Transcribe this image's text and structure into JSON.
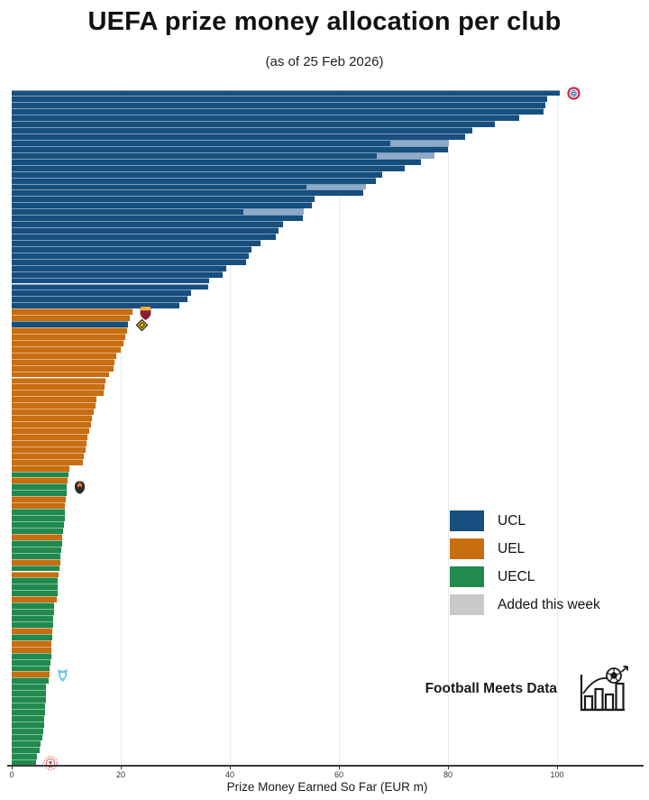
{
  "header": {
    "title": "UEFA prize money allocation per club",
    "subtitle": "(as of 25 Feb 2026)"
  },
  "legend": {
    "items": [
      {
        "label": "UCL",
        "color": "#174F7E"
      },
      {
        "label": "UEL",
        "color": "#C76E11"
      },
      {
        "label": "UECL",
        "color": "#218A4E"
      },
      {
        "label": "Added this week",
        "color": "#C9C9C9"
      }
    ]
  },
  "watermark": {
    "text": "Football Meets Data"
  },
  "chart_data": {
    "type": "bar",
    "orientation": "horizontal",
    "title": "UEFA prize money allocation per club",
    "subtitle": "(as of 25 Feb 2026)",
    "xlabel": "Prize Money Earned So Far (EUR m)",
    "ylabel": "",
    "x_ticks": [
      0,
      20,
      40,
      60,
      80,
      100
    ],
    "xlim": [
      0,
      115
    ],
    "grid": "vertical-light",
    "legend_position": "right-middle",
    "colors": {
      "UCL": "#174F7E",
      "UEL": "#C76E11",
      "UECL": "#218A4E",
      "added_legend": "#C9C9C9",
      "added_over_bar": "#8FA9C9"
    },
    "note": "108 clubs sorted by prize money; 'added' = amount added this week shown as light segment at bar end; crests mark selected clubs",
    "bars": [
      {
        "league": "UCL",
        "value": 100.5,
        "crest": "bayern-munich"
      },
      {
        "league": "UCL",
        "value": 98.2
      },
      {
        "league": "UCL",
        "value": 97.8
      },
      {
        "league": "UCL",
        "value": 97.5
      },
      {
        "league": "UCL",
        "value": 93.0
      },
      {
        "league": "UCL",
        "value": 88.6
      },
      {
        "league": "UCL",
        "value": 84.5
      },
      {
        "league": "UCL",
        "value": 83.1
      },
      {
        "league": "UCL",
        "value": 69.5,
        "added": 10.7
      },
      {
        "league": "UCL",
        "value": 80.0
      },
      {
        "league": "UCL",
        "value": 67.0,
        "added": 10.5
      },
      {
        "league": "UCL",
        "value": 75.0
      },
      {
        "league": "UCL",
        "value": 72.0
      },
      {
        "league": "UCL",
        "value": 68.0
      },
      {
        "league": "UCL",
        "value": 66.8
      },
      {
        "league": "UCL",
        "value": 54.0,
        "added": 11.0
      },
      {
        "league": "UCL",
        "value": 64.5
      },
      {
        "league": "UCL",
        "value": 55.5
      },
      {
        "league": "UCL",
        "value": 55.1
      },
      {
        "league": "UCL",
        "value": 42.5,
        "added": 11.0
      },
      {
        "league": "UCL",
        "value": 53.4
      },
      {
        "league": "UCL",
        "value": 49.7
      },
      {
        "league": "UCL",
        "value": 48.9
      },
      {
        "league": "UCL",
        "value": 48.4
      },
      {
        "league": "UCL",
        "value": 45.6
      },
      {
        "league": "UCL",
        "value": 43.9
      },
      {
        "league": "UCL",
        "value": 43.4
      },
      {
        "league": "UCL",
        "value": 43.0
      },
      {
        "league": "UCL",
        "value": 39.3
      },
      {
        "league": "UCL",
        "value": 38.6
      },
      {
        "league": "UCL",
        "value": 36.2
      },
      {
        "league": "UCL",
        "value": 36.0
      },
      {
        "league": "UCL",
        "value": 32.9
      },
      {
        "league": "UCL",
        "value": 32.2
      },
      {
        "league": "UCL",
        "value": 30.7
      },
      {
        "league": "UEL",
        "value": 22.1,
        "crest": "as-roma"
      },
      {
        "league": "UEL",
        "value": 21.6
      },
      {
        "league": "UCL",
        "value": 21.3,
        "crest": "kairat"
      },
      {
        "league": "UEL",
        "value": 21.2
      },
      {
        "league": "UEL",
        "value": 20.8
      },
      {
        "league": "UEL",
        "value": 20.5
      },
      {
        "league": "UEL",
        "value": 20.0
      },
      {
        "league": "UEL",
        "value": 19.2
      },
      {
        "league": "UEL",
        "value": 18.8
      },
      {
        "league": "UEL",
        "value": 18.7
      },
      {
        "league": "UEL",
        "value": 17.9
      },
      {
        "league": "UEL",
        "value": 17.2
      },
      {
        "league": "UEL",
        "value": 17.0
      },
      {
        "league": "UEL",
        "value": 16.8
      },
      {
        "league": "UEL",
        "value": 15.5
      },
      {
        "league": "UEL",
        "value": 15.4
      },
      {
        "league": "UEL",
        "value": 15.0
      },
      {
        "league": "UEL",
        "value": 14.7
      },
      {
        "league": "UEL",
        "value": 14.5
      },
      {
        "league": "UEL",
        "value": 14.2
      },
      {
        "league": "UEL",
        "value": 13.9
      },
      {
        "league": "UEL",
        "value": 13.7
      },
      {
        "league": "UEL",
        "value": 13.5
      },
      {
        "league": "UEL",
        "value": 13.3
      },
      {
        "league": "UEL",
        "value": 13.1
      },
      {
        "league": "UEL",
        "value": 10.6
      },
      {
        "league": "UECL",
        "value": 10.4
      },
      {
        "league": "UEL",
        "value": 10.2
      },
      {
        "league": "UECL",
        "value": 10.1,
        "crest": "shakhtar"
      },
      {
        "league": "UECL",
        "value": 10.0
      },
      {
        "league": "UEL",
        "value": 9.9
      },
      {
        "league": "UEL",
        "value": 9.8
      },
      {
        "league": "UECL",
        "value": 9.8
      },
      {
        "league": "UECL",
        "value": 9.7
      },
      {
        "league": "UECL",
        "value": 9.6
      },
      {
        "league": "UECL",
        "value": 9.4
      },
      {
        "league": "UEL",
        "value": 9.3
      },
      {
        "league": "UECL",
        "value": 9.2
      },
      {
        "league": "UECL",
        "value": 9.1
      },
      {
        "league": "UECL",
        "value": 8.9
      },
      {
        "league": "UEL",
        "value": 8.9
      },
      {
        "league": "UECL",
        "value": 8.8
      },
      {
        "league": "UEL",
        "value": 8.6
      },
      {
        "league": "UECL",
        "value": 8.5
      },
      {
        "league": "UECL",
        "value": 8.4
      },
      {
        "league": "UECL",
        "value": 8.4
      },
      {
        "league": "UEL",
        "value": 8.3
      },
      {
        "league": "UECL",
        "value": 7.8
      },
      {
        "league": "UECL",
        "value": 7.8
      },
      {
        "league": "UECL",
        "value": 7.6
      },
      {
        "league": "UECL",
        "value": 7.6
      },
      {
        "league": "UEL",
        "value": 7.4
      },
      {
        "league": "UECL",
        "value": 7.4
      },
      {
        "league": "UEL",
        "value": 7.3
      },
      {
        "league": "UEL",
        "value": 7.3
      },
      {
        "league": "UECL",
        "value": 7.2
      },
      {
        "league": "UECL",
        "value": 7.1
      },
      {
        "league": "UECL",
        "value": 7.0
      },
      {
        "league": "UEL",
        "value": 7.0,
        "crest": "light-blue-club"
      },
      {
        "league": "UECL",
        "value": 6.8
      },
      {
        "league": "UECL",
        "value": 6.3
      },
      {
        "league": "UECL",
        "value": 6.3
      },
      {
        "league": "UECL",
        "value": 6.2
      },
      {
        "league": "UECL",
        "value": 6.1
      },
      {
        "league": "UECL",
        "value": 6.1
      },
      {
        "league": "UECL",
        "value": 6.0
      },
      {
        "league": "UECL",
        "value": 5.9
      },
      {
        "league": "UECL",
        "value": 5.8
      },
      {
        "league": "UECL",
        "value": 5.7
      },
      {
        "league": "UECL",
        "value": 5.3
      },
      {
        "league": "UECL",
        "value": 5.1
      },
      {
        "league": "UECL",
        "value": 4.7
      },
      {
        "league": "UECL",
        "value": 4.5,
        "crest": "red-white-club"
      }
    ]
  }
}
